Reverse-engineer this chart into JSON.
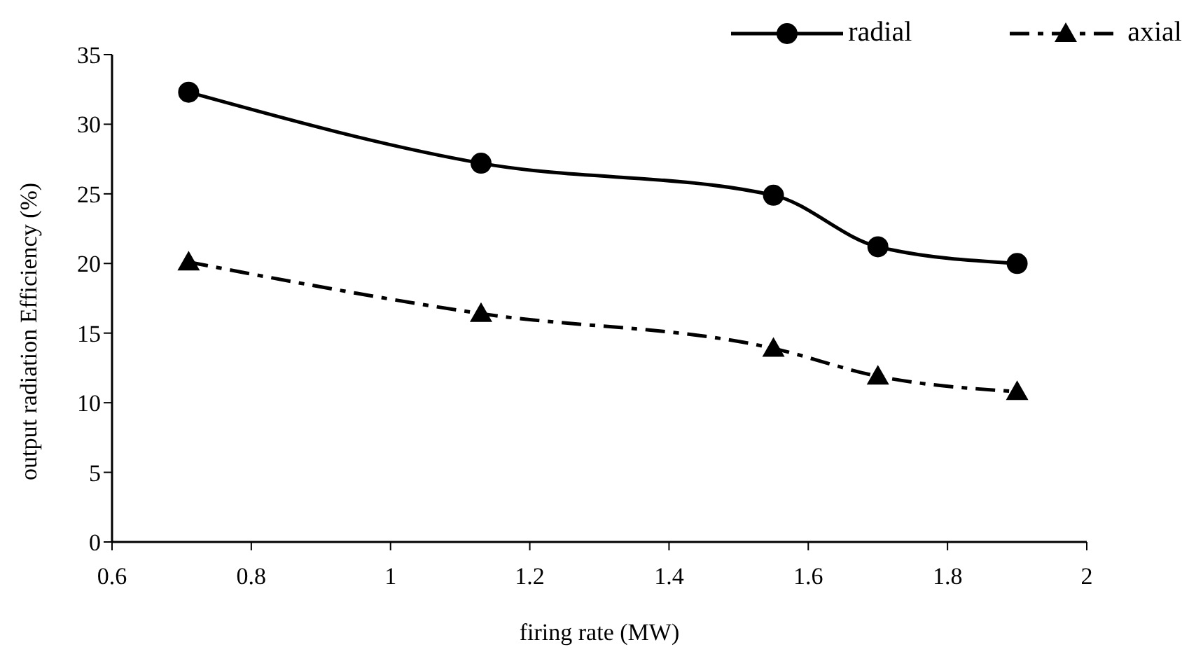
{
  "chart_data": {
    "type": "line",
    "xlabel": "firing rate (MW)",
    "ylabel": "output radiation Efficiency (%)",
    "x": [
      0.71,
      1.13,
      1.55,
      1.7,
      1.9
    ],
    "series": [
      {
        "name": "radial",
        "color": "#000000",
        "marker": "circle",
        "line_style": "solid",
        "values": [
          32.3,
          27.2,
          24.9,
          21.2,
          20.0
        ]
      },
      {
        "name": "axial",
        "color": "#000000",
        "marker": "triangle",
        "line_style": "dashed",
        "values": [
          20.1,
          16.4,
          13.9,
          11.9,
          10.8
        ]
      }
    ],
    "xlim": [
      0.6,
      2
    ],
    "xticks": [
      0.6,
      0.8,
      1,
      1.2,
      1.4,
      1.6,
      1.8,
      2
    ],
    "ylim": [
      0,
      35
    ],
    "yticks": [
      0,
      5,
      10,
      15,
      20,
      25,
      30,
      35
    ],
    "grid": false,
    "legend": "top right"
  }
}
